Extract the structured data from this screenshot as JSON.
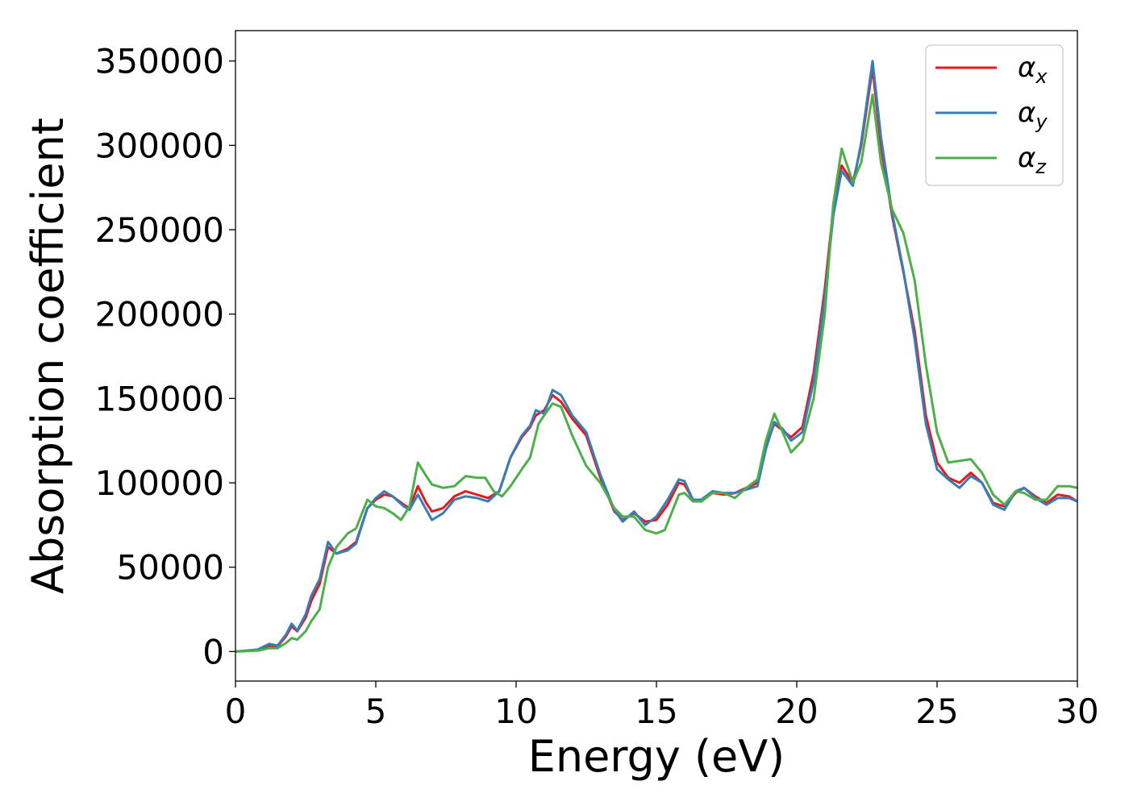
{
  "chart_data": {
    "type": "line",
    "title": "",
    "xlabel": "Energy (eV)",
    "ylabel": "Absorption coefficient",
    "xlim": [
      0,
      30
    ],
    "ylim": [
      -17500,
      368000
    ],
    "xticks": [
      0,
      5,
      10,
      15,
      20,
      25,
      30
    ],
    "yticks": [
      0,
      50000,
      100000,
      150000,
      200000,
      250000,
      300000,
      350000
    ],
    "grid": false,
    "legend_position": "top-right",
    "series": [
      {
        "name": "α_x",
        "symbol": "α",
        "subscript": "x",
        "color": "#e41a1c",
        "points": [
          [
            0,
            0
          ],
          [
            0.8,
            1000
          ],
          [
            1.2,
            3500
          ],
          [
            1.5,
            3000
          ],
          [
            1.8,
            9000
          ],
          [
            2.0,
            15000
          ],
          [
            2.2,
            12000
          ],
          [
            2.5,
            20000
          ],
          [
            2.7,
            30000
          ],
          [
            3.0,
            40000
          ],
          [
            3.3,
            62000
          ],
          [
            3.6,
            58000
          ],
          [
            4.0,
            61000
          ],
          [
            4.3,
            65000
          ],
          [
            4.7,
            85000
          ],
          [
            5.0,
            90000
          ],
          [
            5.3,
            93000
          ],
          [
            5.6,
            92000
          ],
          [
            6.0,
            87000
          ],
          [
            6.2,
            85000
          ],
          [
            6.5,
            98000
          ],
          [
            6.8,
            88000
          ],
          [
            7.0,
            83000
          ],
          [
            7.4,
            85000
          ],
          [
            7.8,
            92000
          ],
          [
            8.2,
            95000
          ],
          [
            8.6,
            93000
          ],
          [
            9.0,
            91000
          ],
          [
            9.4,
            95000
          ],
          [
            9.8,
            115000
          ],
          [
            10.2,
            127000
          ],
          [
            10.5,
            133000
          ],
          [
            10.7,
            140000
          ],
          [
            11.0,
            143000
          ],
          [
            11.3,
            152000
          ],
          [
            11.6,
            148000
          ],
          [
            12.0,
            138000
          ],
          [
            12.5,
            128000
          ],
          [
            13.0,
            103000
          ],
          [
            13.5,
            83000
          ],
          [
            13.8,
            78000
          ],
          [
            14.2,
            82000
          ],
          [
            14.6,
            77000
          ],
          [
            15.0,
            78000
          ],
          [
            15.4,
            87000
          ],
          [
            15.8,
            100000
          ],
          [
            16.0,
            99000
          ],
          [
            16.3,
            90000
          ],
          [
            16.6,
            89000
          ],
          [
            17.0,
            94000
          ],
          [
            17.4,
            93000
          ],
          [
            17.8,
            94000
          ],
          [
            18.2,
            97000
          ],
          [
            18.6,
            100000
          ],
          [
            18.9,
            122000
          ],
          [
            19.2,
            135000
          ],
          [
            19.5,
            131000
          ],
          [
            19.8,
            127000
          ],
          [
            20.2,
            133000
          ],
          [
            20.6,
            165000
          ],
          [
            21.0,
            215000
          ],
          [
            21.3,
            262000
          ],
          [
            21.6,
            288000
          ],
          [
            22.0,
            278000
          ],
          [
            22.3,
            300000
          ],
          [
            22.7,
            346000
          ],
          [
            23.0,
            300000
          ],
          [
            23.4,
            258000
          ],
          [
            23.8,
            225000
          ],
          [
            24.2,
            190000
          ],
          [
            24.6,
            140000
          ],
          [
            25.0,
            112000
          ],
          [
            25.4,
            103000
          ],
          [
            25.8,
            100000
          ],
          [
            26.2,
            106000
          ],
          [
            26.6,
            100000
          ],
          [
            27.0,
            88000
          ],
          [
            27.4,
            86000
          ],
          [
            27.8,
            94000
          ],
          [
            28.1,
            97000
          ],
          [
            28.5,
            92000
          ],
          [
            28.9,
            88000
          ],
          [
            29.3,
            93000
          ],
          [
            29.7,
            92000
          ],
          [
            30.0,
            89000
          ]
        ]
      },
      {
        "name": "α_y",
        "symbol": "α",
        "subscript": "y",
        "color": "#377eb8",
        "points": [
          [
            0,
            0
          ],
          [
            0.8,
            1200
          ],
          [
            1.2,
            4500
          ],
          [
            1.5,
            3500
          ],
          [
            1.8,
            10000
          ],
          [
            2.0,
            16500
          ],
          [
            2.2,
            12500
          ],
          [
            2.5,
            22000
          ],
          [
            2.7,
            33000
          ],
          [
            3.0,
            43000
          ],
          [
            3.3,
            65000
          ],
          [
            3.6,
            58000
          ],
          [
            4.0,
            60000
          ],
          [
            4.3,
            64000
          ],
          [
            4.7,
            85000
          ],
          [
            5.0,
            91000
          ],
          [
            5.3,
            95000
          ],
          [
            5.6,
            92000
          ],
          [
            6.0,
            86000
          ],
          [
            6.2,
            84000
          ],
          [
            6.5,
            93000
          ],
          [
            6.8,
            84000
          ],
          [
            7.0,
            78000
          ],
          [
            7.4,
            82000
          ],
          [
            7.8,
            90000
          ],
          [
            8.2,
            92000
          ],
          [
            8.6,
            91000
          ],
          [
            9.0,
            89000
          ],
          [
            9.4,
            95000
          ],
          [
            9.8,
            115000
          ],
          [
            10.2,
            128000
          ],
          [
            10.5,
            134000
          ],
          [
            10.7,
            143000
          ],
          [
            11.0,
            141000
          ],
          [
            11.3,
            155000
          ],
          [
            11.6,
            152000
          ],
          [
            12.0,
            140000
          ],
          [
            12.5,
            130000
          ],
          [
            13.0,
            105000
          ],
          [
            13.5,
            84000
          ],
          [
            13.8,
            77000
          ],
          [
            14.2,
            83000
          ],
          [
            14.6,
            75000
          ],
          [
            15.0,
            80000
          ],
          [
            15.4,
            90000
          ],
          [
            15.8,
            102000
          ],
          [
            16.0,
            101000
          ],
          [
            16.3,
            90000
          ],
          [
            16.6,
            90000
          ],
          [
            17.0,
            95000
          ],
          [
            17.4,
            94000
          ],
          [
            17.8,
            94000
          ],
          [
            18.2,
            96000
          ],
          [
            18.6,
            98000
          ],
          [
            18.9,
            120000
          ],
          [
            19.2,
            136000
          ],
          [
            19.5,
            132000
          ],
          [
            19.8,
            125000
          ],
          [
            20.2,
            130000
          ],
          [
            20.6,
            160000
          ],
          [
            21.0,
            210000
          ],
          [
            21.3,
            258000
          ],
          [
            21.6,
            285000
          ],
          [
            22.0,
            276000
          ],
          [
            22.3,
            302000
          ],
          [
            22.7,
            350000
          ],
          [
            23.0,
            305000
          ],
          [
            23.4,
            260000
          ],
          [
            23.8,
            226000
          ],
          [
            24.2,
            185000
          ],
          [
            24.6,
            135000
          ],
          [
            25.0,
            108000
          ],
          [
            25.4,
            102000
          ],
          [
            25.8,
            97000
          ],
          [
            26.2,
            104000
          ],
          [
            26.6,
            100000
          ],
          [
            27.0,
            87000
          ],
          [
            27.4,
            84000
          ],
          [
            27.8,
            95000
          ],
          [
            28.1,
            97000
          ],
          [
            28.5,
            91000
          ],
          [
            28.9,
            87000
          ],
          [
            29.3,
            91000
          ],
          [
            29.7,
            91000
          ],
          [
            30.0,
            89000
          ]
        ]
      },
      {
        "name": "α_z",
        "symbol": "α",
        "subscript": "z",
        "color": "#4daf4a",
        "points": [
          [
            0,
            0
          ],
          [
            0.8,
            500
          ],
          [
            1.2,
            2000
          ],
          [
            1.5,
            2000
          ],
          [
            1.8,
            5000
          ],
          [
            2.0,
            8000
          ],
          [
            2.2,
            7000
          ],
          [
            2.5,
            12000
          ],
          [
            2.7,
            18000
          ],
          [
            3.0,
            25000
          ],
          [
            3.3,
            50000
          ],
          [
            3.6,
            62000
          ],
          [
            4.0,
            70000
          ],
          [
            4.3,
            73000
          ],
          [
            4.7,
            90000
          ],
          [
            5.0,
            86000
          ],
          [
            5.3,
            85000
          ],
          [
            5.6,
            82000
          ],
          [
            5.9,
            78000
          ],
          [
            6.2,
            86000
          ],
          [
            6.5,
            112000
          ],
          [
            6.8,
            104000
          ],
          [
            7.0,
            99000
          ],
          [
            7.4,
            97000
          ],
          [
            7.8,
            98000
          ],
          [
            8.2,
            104000
          ],
          [
            8.6,
            103000
          ],
          [
            8.9,
            103000
          ],
          [
            9.2,
            95000
          ],
          [
            9.5,
            92000
          ],
          [
            9.8,
            98000
          ],
          [
            10.2,
            108000
          ],
          [
            10.5,
            115000
          ],
          [
            10.8,
            135000
          ],
          [
            11.0,
            140000
          ],
          [
            11.3,
            147000
          ],
          [
            11.6,
            145000
          ],
          [
            12.0,
            128000
          ],
          [
            12.5,
            110000
          ],
          [
            13.0,
            100000
          ],
          [
            13.5,
            85000
          ],
          [
            13.8,
            80000
          ],
          [
            14.2,
            80000
          ],
          [
            14.6,
            72000
          ],
          [
            15.0,
            70000
          ],
          [
            15.3,
            72000
          ],
          [
            15.8,
            93000
          ],
          [
            16.0,
            94000
          ],
          [
            16.3,
            89000
          ],
          [
            16.6,
            89000
          ],
          [
            17.0,
            94000
          ],
          [
            17.4,
            94000
          ],
          [
            17.8,
            91000
          ],
          [
            18.2,
            97000
          ],
          [
            18.6,
            102000
          ],
          [
            18.9,
            125000
          ],
          [
            19.2,
            141000
          ],
          [
            19.5,
            130000
          ],
          [
            19.8,
            118000
          ],
          [
            20.2,
            125000
          ],
          [
            20.6,
            150000
          ],
          [
            21.0,
            200000
          ],
          [
            21.3,
            265000
          ],
          [
            21.6,
            298000
          ],
          [
            22.0,
            278000
          ],
          [
            22.3,
            290000
          ],
          [
            22.7,
            330000
          ],
          [
            23.0,
            290000
          ],
          [
            23.4,
            262000
          ],
          [
            23.8,
            248000
          ],
          [
            24.2,
            220000
          ],
          [
            24.6,
            170000
          ],
          [
            25.0,
            130000
          ],
          [
            25.4,
            112000
          ],
          [
            25.8,
            113000
          ],
          [
            26.2,
            114000
          ],
          [
            26.6,
            106000
          ],
          [
            27.0,
            93000
          ],
          [
            27.4,
            87000
          ],
          [
            27.8,
            95000
          ],
          [
            28.1,
            94000
          ],
          [
            28.5,
            90000
          ],
          [
            28.9,
            90000
          ],
          [
            29.3,
            98000
          ],
          [
            29.7,
            98000
          ],
          [
            30.0,
            97000
          ]
        ]
      }
    ]
  }
}
